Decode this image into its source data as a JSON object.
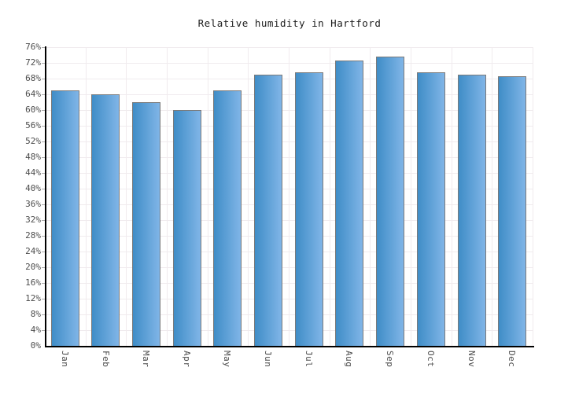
{
  "chart_data": {
    "type": "bar",
    "title": "Relative humidity in Hartford",
    "categories": [
      "Jan",
      "Feb",
      "Mar",
      "Apr",
      "May",
      "Jun",
      "Jul",
      "Aug",
      "Sep",
      "Oct",
      "Nov",
      "Dec"
    ],
    "values": [
      65,
      64,
      62,
      60,
      65,
      69,
      69.5,
      72.5,
      73.5,
      69.5,
      69,
      68.5
    ],
    "unit": "%",
    "xlabel": "",
    "ylabel": "",
    "ylim": [
      0,
      76
    ],
    "ytick_step": 4,
    "ytick_labels": [
      "0%",
      "4%",
      "8%",
      "12%",
      "16%",
      "20%",
      "24%",
      "28%",
      "32%",
      "36%",
      "40%",
      "44%",
      "48%",
      "52%",
      "56%",
      "60%",
      "64%",
      "68%",
      "72%",
      "76%"
    ],
    "grid": "on",
    "legend": "none",
    "colors": {
      "background": "#ffffff",
      "bar_gradient_left": "#3f8dc7",
      "bar_gradient_right": "#80b5e7",
      "bar_border": "#7a7a7a",
      "gridline": "#f0ebee",
      "axis": "#000000",
      "tick": "#aaaaaa",
      "axis_label": "#4d4d4d",
      "title": "#1c1c1c"
    }
  }
}
